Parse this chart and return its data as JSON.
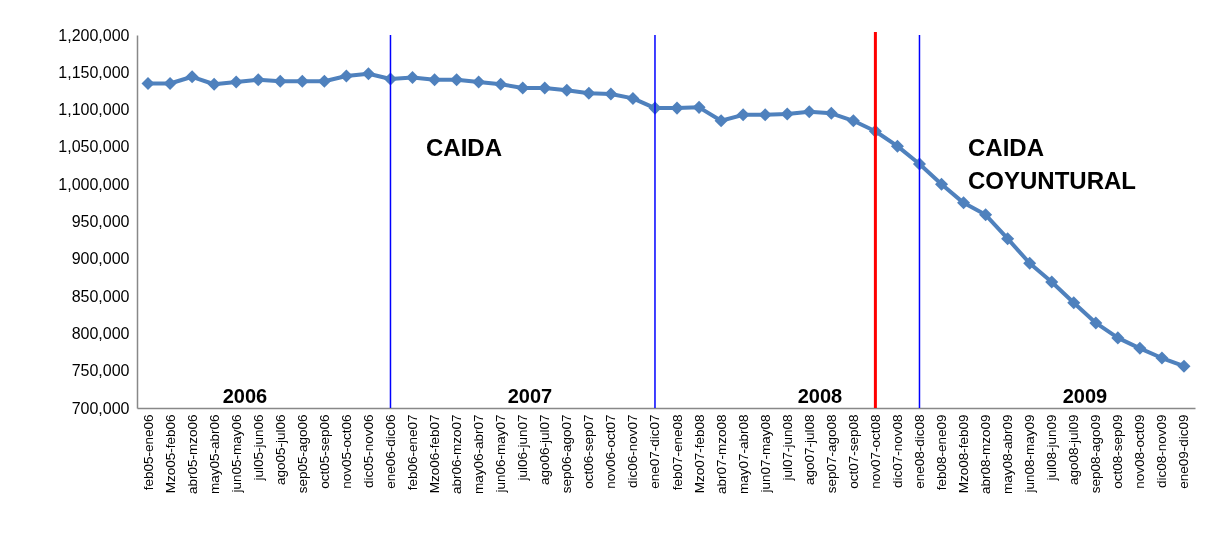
{
  "chart_data": {
    "type": "line",
    "categories": [
      "feb05-ene06",
      "Mzo05-feb06",
      "abr05-mzo06",
      "may05-abr06",
      "jun05-may06",
      "jul05-jun06",
      "ago05-jul06",
      "sep05-ago06",
      "oct05-sep06",
      "nov05-oct06",
      "dic05-nov06",
      "ene06-dic06",
      "feb06-ene07",
      "Mzo06-feb07",
      "abr06-mzo07",
      "may06-abr07",
      "jun06-may07",
      "jul06-jun07",
      "ago06-jul07",
      "sep06-ago07",
      "oct06-sep07",
      "nov06-oct07",
      "dic06-nov07",
      "ene07-dic07",
      "feb07-ene08",
      "Mzo07-feb08",
      "abr07-mzo08",
      "may07-abr08",
      "jun07-may08",
      "jul07-jun08",
      "ago07-jul08",
      "sep07-ago08",
      "oct07-sep08",
      "nov07-oct08",
      "dic07-nov08",
      "ene08-dic08",
      "feb08-ene09",
      "Mzo08-feb09",
      "abr08-mzo09",
      "may08-abr09",
      "jun08-may09",
      "jul08-jun09",
      "ago08-jul09",
      "sep08-ago09",
      "oct08-sep09",
      "nov08-oct09",
      "dic08-nov09",
      "ene09-dic09"
    ],
    "series": [
      {
        "color": "#4f81bd",
        "values": [
          1135000,
          1135000,
          1144000,
          1134000,
          1137000,
          1140000,
          1138000,
          1138000,
          1138000,
          1145000,
          1148000,
          1141000,
          1143000,
          1140000,
          1140000,
          1137000,
          1134000,
          1129000,
          1129000,
          1126000,
          1122000,
          1121000,
          1115000,
          1102000,
          1102000,
          1103000,
          1085000,
          1093000,
          1093000,
          1094000,
          1097000,
          1095000,
          1085000,
          1071000,
          1051000,
          1027000,
          1000000,
          975000,
          959000,
          927000,
          894000,
          869000,
          841000,
          814000,
          794000,
          780000,
          767000,
          756000
        ]
      }
    ],
    "ylim": [
      700000,
      1200000
    ],
    "yticks": [
      {
        "value": 700000,
        "label": "700,000"
      },
      {
        "value": 750000,
        "label": "750,000"
      },
      {
        "value": 800000,
        "label": "800,000"
      },
      {
        "value": 850000,
        "label": "850,000"
      },
      {
        "value": 900000,
        "label": "900,000"
      },
      {
        "value": 950000,
        "label": "950,000"
      },
      {
        "value": 1000000,
        "label": "1,000,000"
      },
      {
        "value": 1050000,
        "label": "1,050,000"
      },
      {
        "value": 1100000,
        "label": "1,100,000"
      },
      {
        "value": 1150000,
        "label": "1,150,000"
      },
      {
        "value": 1200000,
        "label": "1,200,000"
      }
    ],
    "marker": "diamond",
    "ref_lines": [
      {
        "axis": "x",
        "value": "ene06-dic06",
        "color": "#0000ff"
      },
      {
        "axis": "x",
        "value": "ene07-dic07",
        "color": "#0000ff"
      },
      {
        "axis": "x",
        "value": "nov07-oct08",
        "color": "#ff0000"
      },
      {
        "axis": "x",
        "value": "ene08-dic08",
        "color": "#0000ff"
      }
    ],
    "annotations": [
      "CAIDA",
      "CAIDA COYUNTURAL",
      "2006",
      "2007",
      "2008",
      "2009"
    ]
  }
}
